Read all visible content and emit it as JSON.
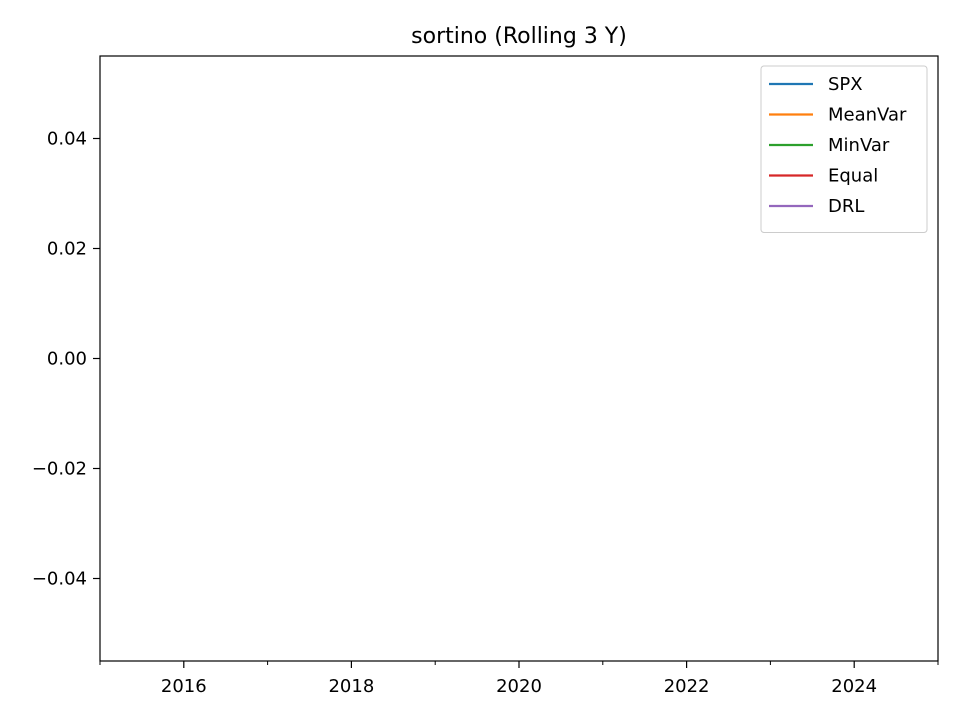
{
  "chart_data": {
    "type": "line",
    "title": "sortino (Rolling 3 Y)",
    "xlabel": "",
    "ylabel": "",
    "xlim": [
      2015,
      2025
    ],
    "ylim": [
      -0.055,
      0.055
    ],
    "x_major_ticks": [
      2016,
      2018,
      2020,
      2022,
      2024
    ],
    "x_major_labels": [
      "2016",
      "2018",
      "2020",
      "2022",
      "2024"
    ],
    "x_minor_ticks": [
      2015,
      2017,
      2019,
      2021,
      2023,
      2025
    ],
    "y_ticks": [
      -0.04,
      -0.02,
      0.0,
      0.02,
      0.04
    ],
    "y_tick_labels": [
      "−0.04",
      "−0.02",
      "0.00",
      "0.02",
      "0.04"
    ],
    "grid": false,
    "legend_position": "top-right",
    "series": [
      {
        "name": "SPX",
        "color": "#1f77b4",
        "x": [],
        "y": []
      },
      {
        "name": "MeanVar",
        "color": "#ff7f0e",
        "x": [],
        "y": []
      },
      {
        "name": "MinVar",
        "color": "#2ca02c",
        "x": [],
        "y": []
      },
      {
        "name": "Equal",
        "color": "#d62728",
        "x": [],
        "y": []
      },
      {
        "name": "DRL",
        "color": "#9467bd",
        "x": [],
        "y": []
      }
    ]
  }
}
